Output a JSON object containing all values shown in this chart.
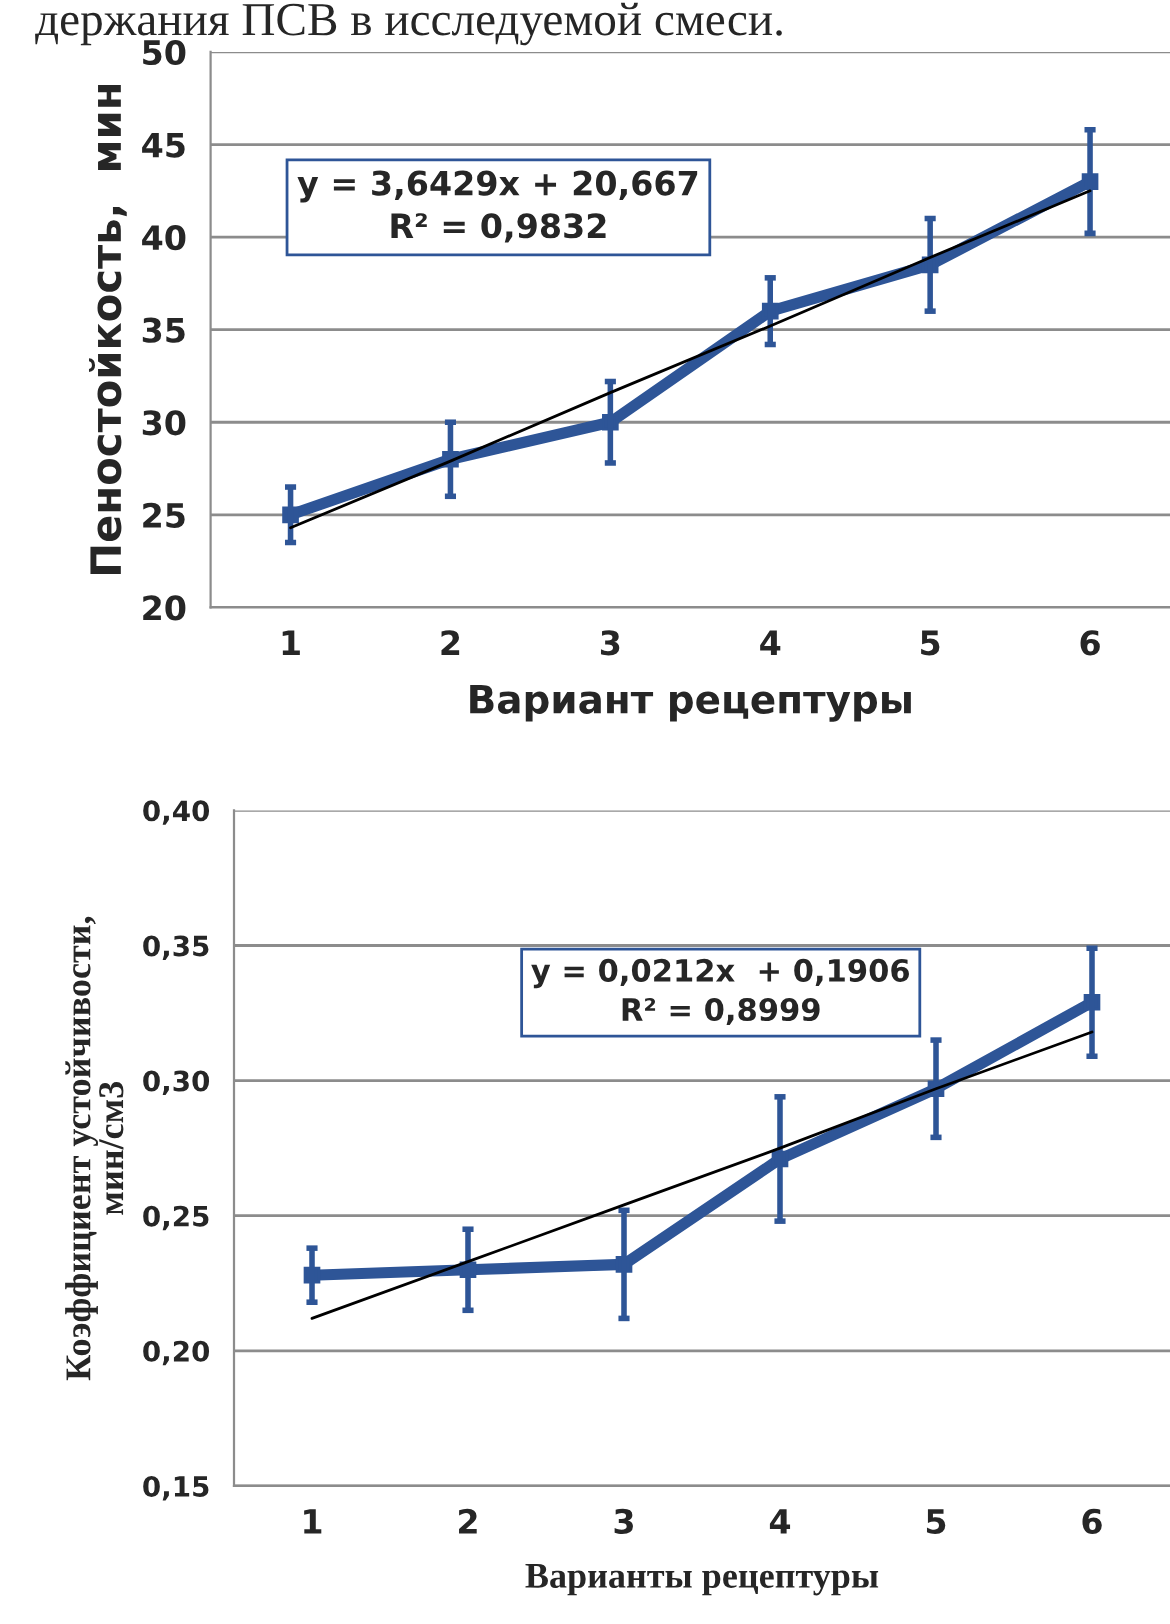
{
  "chart_data": [
    {
      "type": "line",
      "xlabel": "Вариант рецептуры",
      "ylabel": "Пеностойкость,  мин",
      "categories": [
        "1",
        "2",
        "3",
        "4",
        "5",
        "6"
      ],
      "series": [
        {
          "color": "#2e5597",
          "values": [
            25,
            28,
            30,
            36,
            38.5,
            43
          ],
          "errors": [
            1.5,
            2,
            2.2,
            1.8,
            2.5,
            2.8
          ],
          "marker": "square"
        },
        {
          "color": "#000000",
          "values": [
            24.3,
            27.9,
            31.6,
            35.2,
            38.9,
            42.5
          ],
          "marker": "none"
        }
      ],
      "ylim": [
        20,
        50
      ],
      "yticks": [
        20,
        25,
        30,
        35,
        40,
        45,
        50
      ],
      "grid": "y",
      "annotations": [
        "держания ПСВ в исследуемой смеси.",
        "y = 3,6429x + 20,667\nR² = 0,9832"
      ]
    },
    {
      "type": "line",
      "xlabel": "Варианты рецептуры",
      "ylabel": "Коэффициент устойчивости,\nмин/см3",
      "categories": [
        "1",
        "2",
        "3",
        "4",
        "5",
        "6"
      ],
      "series": [
        {
          "color": "#2e5597",
          "values": [
            0.228,
            0.23,
            0.232,
            0.271,
            0.297,
            0.329
          ],
          "errors": [
            0.01,
            0.015,
            0.02,
            0.023,
            0.018,
            0.02
          ],
          "marker": "square"
        },
        {
          "color": "#000000",
          "values": [
            0.212,
            0.233,
            0.254,
            0.275,
            0.297,
            0.318
          ],
          "marker": "none"
        }
      ],
      "ylim": [
        0.15,
        0.4
      ],
      "yticks": [
        {
          "value": 0.15,
          "label": "0,15"
        },
        {
          "value": 0.2,
          "label": "0,20"
        },
        {
          "value": 0.25,
          "label": "0,25"
        },
        {
          "value": 0.3,
          "label": "0,30"
        },
        {
          "value": 0.35,
          "label": "0,35"
        },
        {
          "value": 0.4,
          "label": "0,40"
        }
      ],
      "grid": "y",
      "annotations": [
        "y = 0,0212x  + 0,1906\nR² = 0,8999"
      ]
    }
  ]
}
